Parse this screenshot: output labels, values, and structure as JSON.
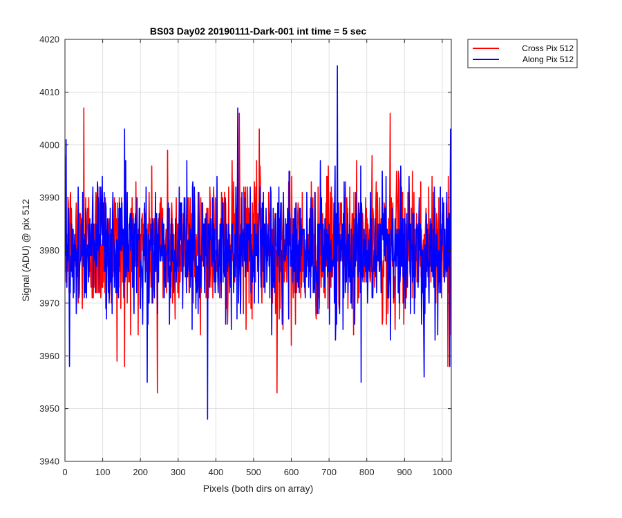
{
  "chart_data": {
    "type": "line",
    "title": "BS03 Day02 20190111-Dark-001 int time = 5 sec",
    "xlabel": "Pixels (both dirs on array)",
    "ylabel": "Signal (ADU) @ pix 512",
    "xlim": [
      0,
      1024
    ],
    "ylim": [
      3940,
      4020
    ],
    "xticks": [
      0,
      100,
      200,
      300,
      400,
      500,
      600,
      700,
      800,
      900,
      1000
    ],
    "yticks": [
      3940,
      3950,
      3960,
      3970,
      3980,
      3990,
      4000,
      4010,
      4020
    ],
    "grid": true,
    "legend_position": "outside-top-right",
    "series": [
      {
        "name": "Cross Pix 512",
        "color": "#ff0000",
        "mean": 3981,
        "noise_sigma": 6.5,
        "num_points": 1024,
        "extremes": [
          {
            "x": 50,
            "y": 4007
          },
          {
            "x": 138,
            "y": 3959
          },
          {
            "x": 158,
            "y": 3958
          },
          {
            "x": 245,
            "y": 3953
          },
          {
            "x": 272,
            "y": 3999
          },
          {
            "x": 462,
            "y": 4006
          },
          {
            "x": 515,
            "y": 4003
          },
          {
            "x": 562,
            "y": 3953
          },
          {
            "x": 600,
            "y": 3962
          },
          {
            "x": 862,
            "y": 4006
          },
          {
            "x": 1015,
            "y": 3958
          }
        ]
      },
      {
        "name": "Along Pix 512",
        "color": "#0000ff",
        "mean": 3980,
        "noise_sigma": 6.0,
        "num_points": 1024,
        "extremes": [
          {
            "x": 3,
            "y": 4001
          },
          {
            "x": 12,
            "y": 3958
          },
          {
            "x": 158,
            "y": 4003
          },
          {
            "x": 218,
            "y": 3955
          },
          {
            "x": 378,
            "y": 3948
          },
          {
            "x": 458,
            "y": 4007
          },
          {
            "x": 722,
            "y": 4015
          },
          {
            "x": 785,
            "y": 3955
          },
          {
            "x": 952,
            "y": 3956
          },
          {
            "x": 1020,
            "y": 3958
          },
          {
            "x": 1022,
            "y": 4003
          }
        ]
      }
    ]
  }
}
